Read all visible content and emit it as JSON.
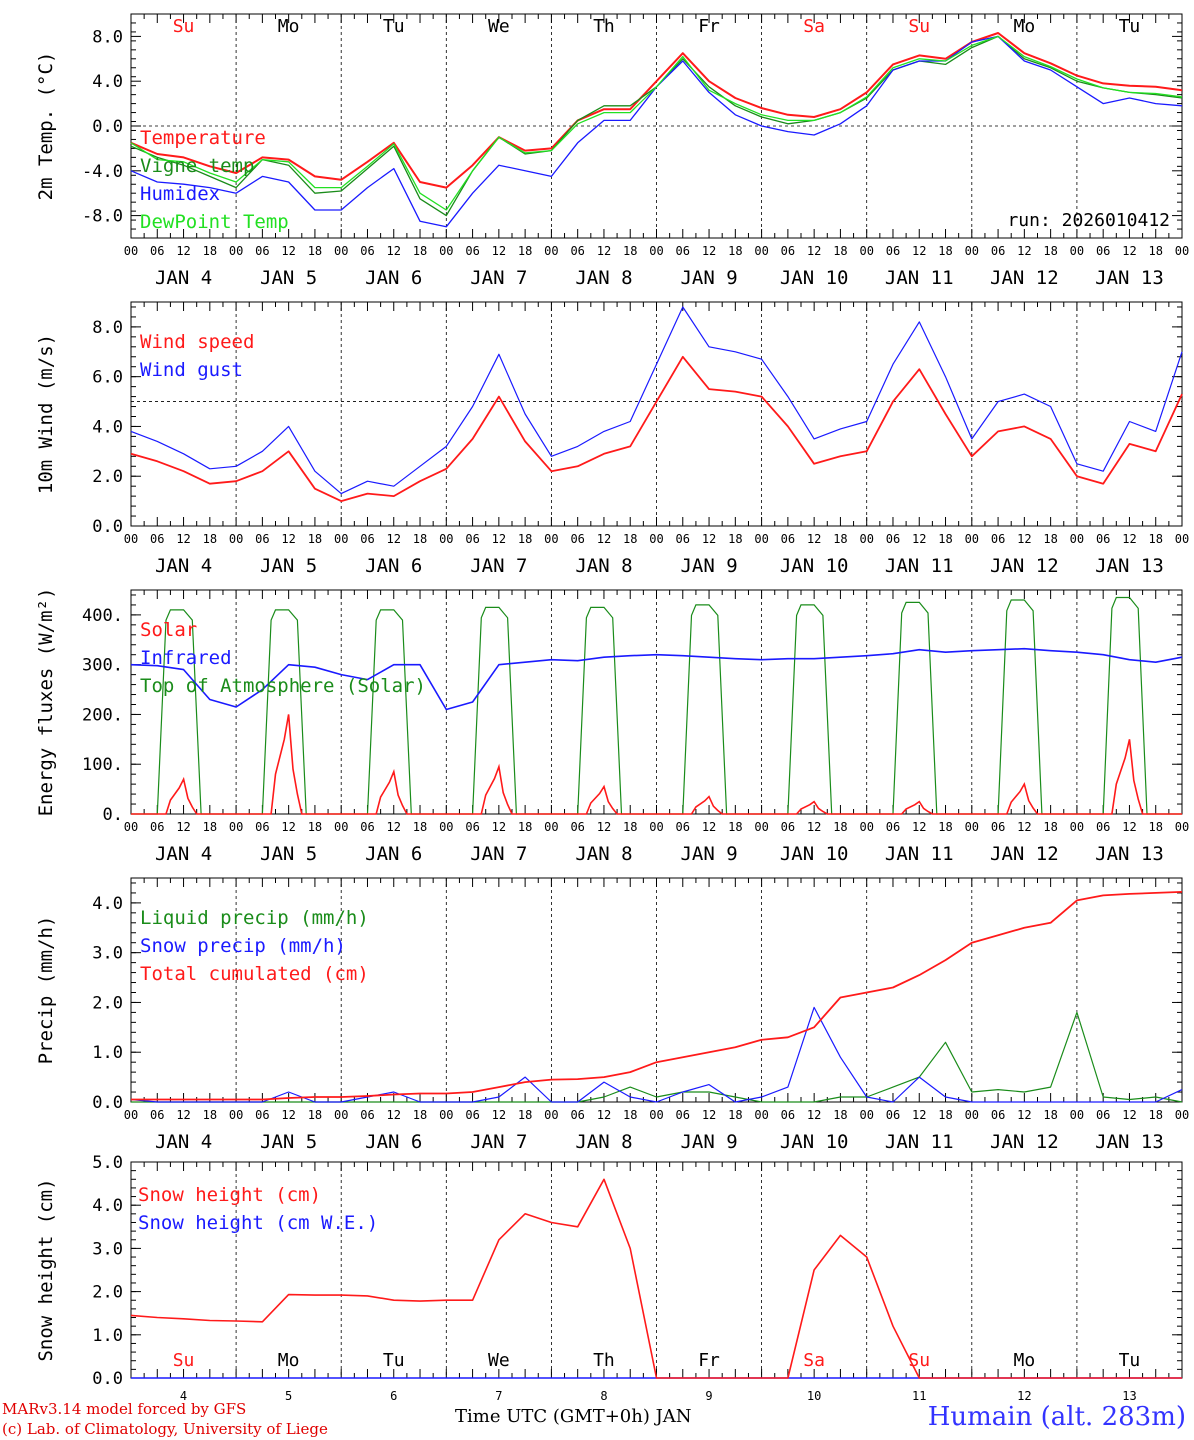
{
  "colors": {
    "red": "#ff1a1a",
    "green": "#1a8c1a",
    "blue": "#1a1aff",
    "lightgreen": "#22e022",
    "saturday": "#ff1a1a",
    "sunday": "#ff1a1a"
  },
  "chart_data": [
    {
      "id": "temp",
      "type": "line",
      "ylabel": "2m Temp. (°C)",
      "ylim": [
        -10,
        10
      ],
      "yticks": [
        8.0,
        4.0,
        0.0,
        -4.0,
        -8.0
      ],
      "ytick_labels": [
        "8.0",
        "4.0",
        "0.0",
        "-4.0",
        "-8.0"
      ],
      "hline": 0,
      "day_labels": [
        "Su",
        "Mo",
        "Tu",
        "We",
        "Th",
        "Fr",
        "Sa",
        "Su",
        "Mo",
        "Tu"
      ],
      "annotation": "run: 2026010412",
      "x_hours": [
        0,
        6,
        12,
        18,
        24,
        30,
        36,
        42,
        48,
        54,
        60,
        66,
        72,
        78,
        84,
        90,
        96,
        102,
        108,
        114,
        120,
        126,
        132,
        138,
        144,
        150,
        156,
        162,
        168,
        174,
        180,
        186,
        192,
        198,
        204,
        210,
        216,
        222,
        228,
        234,
        240
      ],
      "series": [
        {
          "name": "Temperature",
          "color": "#ff1a1a",
          "values": [
            -1.5,
            -2.5,
            -2.8,
            -3.6,
            -4.2,
            -2.8,
            -3.0,
            -4.5,
            -4.8,
            -3.2,
            -1.5,
            -5.0,
            -5.5,
            -3.5,
            -1.0,
            -2.2,
            -2.0,
            0.5,
            1.5,
            1.5,
            4.0,
            6.5,
            4.0,
            2.5,
            1.6,
            1.0,
            0.8,
            1.5,
            3.0,
            5.5,
            6.3,
            6.0,
            7.5,
            8.3,
            6.5,
            5.6,
            4.5,
            3.8,
            3.6,
            3.5,
            3.2
          ]
        },
        {
          "name": "Vigne temp",
          "color": "#1a8c1a",
          "values": [
            -1.8,
            -2.8,
            -3.5,
            -4.5,
            -5.5,
            -3.0,
            -3.5,
            -6.0,
            -5.8,
            -3.8,
            -1.8,
            -6.5,
            -8.0,
            -4.0,
            -1.0,
            -2.5,
            -2.2,
            0.5,
            1.8,
            1.8,
            3.5,
            6.0,
            3.5,
            1.8,
            0.8,
            0.2,
            0.5,
            1.2,
            2.5,
            5.0,
            5.8,
            5.5,
            7.0,
            8.0,
            6.0,
            5.2,
            4.0,
            3.4,
            3.0,
            2.8,
            2.5
          ]
        },
        {
          "name": "Humidex",
          "color": "#1a1aff",
          "values": [
            -4.0,
            -5.0,
            -5.2,
            -5.5,
            -6.0,
            -4.5,
            -5.0,
            -7.5,
            -7.5,
            -5.5,
            -3.8,
            -8.5,
            -9.0,
            -6.0,
            -3.5,
            -4.0,
            -4.5,
            -1.5,
            0.5,
            0.5,
            3.5,
            5.8,
            3.0,
            1.0,
            0.0,
            -0.5,
            -0.8,
            0.2,
            1.8,
            5.0,
            5.8,
            5.8,
            7.5,
            8.0,
            5.8,
            5.0,
            3.5,
            2.0,
            2.5,
            2.0,
            1.8
          ]
        },
        {
          "name": "DewPoint Temp",
          "color": "#22e022",
          "values": [
            -1.5,
            -3.0,
            -3.2,
            -4.2,
            -5.0,
            -3.0,
            -3.2,
            -5.5,
            -5.5,
            -3.6,
            -1.6,
            -6.0,
            -7.5,
            -4.0,
            -1.0,
            -2.4,
            -2.2,
            0.2,
            1.2,
            1.2,
            3.5,
            6.2,
            3.2,
            2.0,
            1.0,
            0.5,
            0.5,
            1.2,
            2.6,
            5.2,
            6.0,
            5.8,
            7.2,
            8.0,
            6.2,
            5.3,
            4.2,
            3.4,
            3.0,
            2.9,
            2.6
          ]
        }
      ]
    },
    {
      "id": "wind",
      "type": "line",
      "ylabel": "10m Wind (m/s)",
      "ylim": [
        0,
        9
      ],
      "yticks": [
        8.0,
        6.0,
        4.0,
        2.0,
        0.0
      ],
      "ytick_labels": [
        "8.0",
        "6.0",
        "4.0",
        "2.0",
        "0.0"
      ],
      "hline": 5,
      "x_hours": [
        0,
        6,
        12,
        18,
        24,
        30,
        36,
        42,
        48,
        54,
        60,
        66,
        72,
        78,
        84,
        90,
        96,
        102,
        108,
        114,
        120,
        126,
        132,
        138,
        144,
        150,
        156,
        162,
        168,
        174,
        180,
        186,
        192,
        198,
        204,
        210,
        216,
        222,
        228,
        234,
        240
      ],
      "series": [
        {
          "name": "Wind speed",
          "color": "#ff1a1a",
          "values": [
            2.9,
            2.6,
            2.2,
            1.7,
            1.8,
            2.2,
            3.0,
            1.5,
            1.0,
            1.3,
            1.2,
            1.8,
            2.3,
            3.5,
            5.2,
            3.4,
            2.2,
            2.4,
            2.9,
            3.2,
            5.0,
            6.8,
            5.5,
            5.4,
            5.2,
            4.0,
            2.5,
            2.8,
            3.0,
            5.0,
            6.3,
            4.5,
            2.8,
            3.8,
            4.0,
            3.5,
            2.0,
            1.7,
            3.3,
            3.0,
            5.3
          ]
        },
        {
          "name": "Wind gust",
          "color": "#1a1aff",
          "values": [
            3.8,
            3.4,
            2.9,
            2.3,
            2.4,
            3.0,
            4.0,
            2.2,
            1.3,
            1.8,
            1.6,
            2.4,
            3.2,
            4.8,
            6.9,
            4.5,
            2.8,
            3.2,
            3.8,
            4.2,
            6.5,
            8.8,
            7.2,
            7.0,
            6.7,
            5.2,
            3.5,
            3.9,
            4.2,
            6.5,
            8.2,
            6.0,
            3.5,
            5.0,
            5.3,
            4.8,
            2.5,
            2.2,
            4.2,
            3.8,
            7.0
          ]
        }
      ]
    },
    {
      "id": "energy",
      "type": "line",
      "ylabel": "Energy fluxes (W/m²)",
      "ylim": [
        0,
        450
      ],
      "yticks": [
        400,
        300,
        200,
        100,
        0
      ],
      "ytick_labels": [
        "400.",
        "300.",
        "200.",
        "100.",
        "0."
      ],
      "solar_peaks": [
        70,
        200,
        85,
        95,
        55,
        35,
        25,
        25,
        60,
        150
      ],
      "toa_peaks": [
        410,
        410,
        410,
        415,
        415,
        420,
        420,
        425,
        430,
        435
      ],
      "infrared": [
        300,
        298,
        290,
        230,
        215,
        250,
        300,
        295,
        280,
        270,
        300,
        300,
        210,
        225,
        300,
        305,
        310,
        308,
        315,
        318,
        320,
        318,
        315,
        312,
        310,
        312,
        312,
        315,
        318,
        322,
        330,
        325,
        328,
        330,
        332,
        328,
        325,
        320,
        310,
        305,
        315
      ],
      "series": [
        {
          "name": "Solar",
          "color": "#ff1a1a"
        },
        {
          "name": "Infrared",
          "color": "#1a1aff"
        },
        {
          "name": "Top of Atmosphere (Solar)",
          "color": "#1a8c1a"
        }
      ]
    },
    {
      "id": "precip",
      "type": "line",
      "ylabel": "Precip (mm/h)",
      "ylim": [
        0,
        4.5
      ],
      "yticks": [
        4.0,
        3.0,
        2.0,
        1.0,
        0.0
      ],
      "ytick_labels": [
        "4.0",
        "3.0",
        "2.0",
        "1.0",
        "0.0"
      ],
      "x_hours": [
        0,
        6,
        12,
        18,
        24,
        30,
        36,
        42,
        48,
        54,
        60,
        66,
        72,
        78,
        84,
        90,
        96,
        102,
        108,
        114,
        120,
        126,
        132,
        138,
        144,
        150,
        156,
        162,
        168,
        174,
        180,
        186,
        192,
        198,
        204,
        210,
        216,
        222,
        228,
        234,
        240
      ],
      "series": [
        {
          "name": "Liquid precip (mm/h)",
          "color": "#1a8c1a",
          "values": [
            0,
            0,
            0,
            0,
            0,
            0,
            0,
            0,
            0,
            0,
            0,
            0,
            0,
            0,
            0,
            0,
            0,
            0,
            0.1,
            0.3,
            0.1,
            0.2,
            0.2,
            0.1,
            0,
            0,
            0,
            0.1,
            0.1,
            0.3,
            0.5,
            1.2,
            0.2,
            0.25,
            0.2,
            0.3,
            1.8,
            0.1,
            0.05,
            0.1,
            0
          ]
        },
        {
          "name": "Snow precip (mm/h)",
          "color": "#1a1aff",
          "values": [
            0.05,
            0,
            0,
            0,
            0,
            0,
            0.2,
            0,
            0,
            0.1,
            0.2,
            0,
            0,
            0,
            0.1,
            0.5,
            0,
            0,
            0.4,
            0.1,
            0,
            0.2,
            0.35,
            0,
            0.1,
            0.3,
            1.9,
            0.9,
            0.1,
            0,
            0.5,
            0.1,
            0,
            0,
            0,
            0,
            0,
            0,
            0,
            0,
            0.25
          ]
        },
        {
          "name": "Total cumulated (cm)",
          "color": "#ff1a1a",
          "values": [
            0.05,
            0.05,
            0.05,
            0.05,
            0.05,
            0.05,
            0.08,
            0.1,
            0.1,
            0.12,
            0.15,
            0.17,
            0.17,
            0.2,
            0.3,
            0.4,
            0.45,
            0.46,
            0.5,
            0.6,
            0.8,
            0.9,
            1.0,
            1.1,
            1.25,
            1.3,
            1.5,
            2.1,
            2.2,
            2.3,
            2.55,
            2.85,
            3.2,
            3.35,
            3.5,
            3.6,
            4.05,
            4.15,
            4.18,
            4.2,
            4.22
          ]
        }
      ]
    },
    {
      "id": "snow",
      "type": "line",
      "ylabel": "Snow height (cm)",
      "ylim": [
        0,
        5
      ],
      "yticks": [
        5.0,
        4.0,
        3.0,
        2.0,
        1.0,
        0.0
      ],
      "ytick_labels": [
        "5.0",
        "4.0",
        "3.0",
        "2.0",
        "1.0",
        "0.0"
      ],
      "day_labels": [
        "Su",
        "Mo",
        "Tu",
        "We",
        "Th",
        "Fr",
        "Sa",
        "Su",
        "Mo",
        "Tu"
      ],
      "day_numbers": [
        "4",
        "5",
        "6",
        "7",
        "8",
        "9",
        "10",
        "11",
        "12",
        "13"
      ],
      "x_hours": [
        0,
        6,
        12,
        18,
        24,
        30,
        36,
        42,
        48,
        54,
        60,
        66,
        72,
        78,
        84,
        90,
        96,
        102,
        108,
        114,
        120,
        126,
        132,
        138,
        144,
        150,
        156,
        162,
        168,
        174,
        180,
        186,
        192,
        198,
        204,
        210,
        216,
        222,
        228,
        234,
        240
      ],
      "series": [
        {
          "name": "Snow height (cm)",
          "color": "#ff1a1a",
          "values": [
            1.45,
            1.4,
            1.37,
            1.33,
            1.32,
            1.3,
            1.93,
            1.92,
            1.92,
            1.9,
            1.8,
            1.78,
            1.8,
            1.8,
            3.2,
            3.8,
            3.6,
            3.5,
            4.6,
            3.0,
            0,
            0,
            0,
            0,
            0,
            0,
            2.5,
            3.3,
            2.8,
            1.2,
            0,
            0,
            0,
            0,
            0,
            0,
            0,
            0,
            0,
            0,
            0
          ]
        },
        {
          "name": "Snow height (cm W.E.)",
          "color": "#1a1aff",
          "values": [
            0,
            0,
            0,
            0,
            0,
            0,
            0,
            0,
            0,
            0,
            0,
            0,
            0,
            0,
            0,
            0,
            0,
            0,
            0,
            0,
            0,
            0,
            0,
            0,
            0,
            0,
            0,
            0,
            0,
            0,
            0,
            0,
            0,
            0,
            0,
            0,
            0,
            0,
            0,
            0,
            0
          ]
        }
      ]
    }
  ],
  "x_axis": {
    "hour_ticks": [
      "00",
      "06",
      "12",
      "18"
    ],
    "dates": [
      "JAN  4",
      "JAN  5",
      "JAN  6",
      "JAN  7",
      "JAN  8",
      "JAN  9",
      "JAN 10",
      "JAN 11",
      "JAN 12",
      "JAN 13"
    ],
    "xlabel": "Time UTC (GMT+0h) JAN"
  },
  "footer": {
    "line1": "MARv3.14 model forced by GFS",
    "line2": "(c) Lab. of Climatology, University of Liege",
    "station": "Humain (alt. 283m)"
  }
}
